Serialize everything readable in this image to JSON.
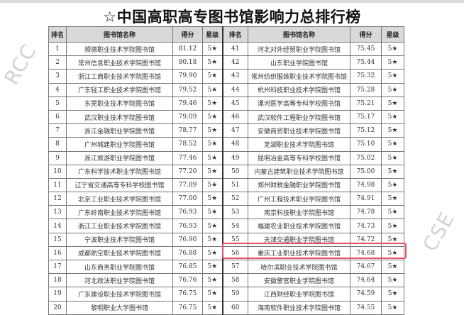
{
  "watermark": {
    "top": "RCC",
    "bottom": "CSE"
  },
  "title": "☆中国高职高专图书馆影响力总排行榜",
  "headers": {
    "rank": "排名",
    "name": "图书馆名称",
    "score": "得分",
    "stars": "星级"
  },
  "highlight_color": "#e8506a",
  "left": [
    {
      "rank": "1",
      "name": "顺德职业技术学院图书馆",
      "score": "81.12",
      "stars": "5★"
    },
    {
      "rank": "2",
      "name": "常州信息职业技术学院图书馆",
      "score": "80.18",
      "stars": "5★"
    },
    {
      "rank": "3",
      "name": "浙江工商职业技术学院图书馆",
      "score": "79.90",
      "stars": "5★"
    },
    {
      "rank": "4",
      "name": "广东轻工职业技术学院图书馆",
      "score": "79.52",
      "stars": "5★"
    },
    {
      "rank": "5",
      "name": "东莞职业技术学院图书馆",
      "score": "79.46",
      "stars": "5★"
    },
    {
      "rank": "6",
      "name": "武汉职业技术学院图书馆",
      "score": "79.09",
      "stars": "5★"
    },
    {
      "rank": "7",
      "name": "浙江金融职业学院图书馆",
      "score": "78.77",
      "stars": "5★"
    },
    {
      "rank": "8",
      "name": "广州城建职业学院图书馆",
      "score": "78.52",
      "stars": "5★"
    },
    {
      "rank": "9",
      "name": "浙江旅游职业学院图书馆",
      "score": "77.46",
      "stars": "5★"
    },
    {
      "rank": "10",
      "name": "广东科学技术职业学院图书馆",
      "score": "77.20",
      "stars": "5★"
    },
    {
      "rank": "11",
      "name": "辽宁省交通高等专科学校图书馆",
      "score": "77.09",
      "stars": "5★"
    },
    {
      "rank": "12",
      "name": "北京工业职业技术学院图书馆",
      "score": "77.00",
      "stars": "5★"
    },
    {
      "rank": "13",
      "name": "广东岭南职业技术学院图书馆",
      "score": "76.93",
      "stars": "5★"
    },
    {
      "rank": "14",
      "name": "浙江工业职业技术学院图书馆",
      "score": "76.93",
      "stars": "5★"
    },
    {
      "rank": "15",
      "name": "宁波职业技术学院图书馆",
      "score": "76.90",
      "stars": "5★"
    },
    {
      "rank": "16",
      "name": "成都航空职业技术学院图书馆",
      "score": "76.88",
      "stars": "5★"
    },
    {
      "rank": "17",
      "name": "山东商务职业学院图书馆",
      "score": "76.85",
      "stars": "5★"
    },
    {
      "rank": "18",
      "name": "河北政法职业学院图书馆",
      "score": "76.76",
      "stars": "5★"
    },
    {
      "rank": "19",
      "name": "广东建设职业技术学院图书馆",
      "score": "76.75",
      "stars": "5★"
    },
    {
      "rank": "20",
      "name": "黎明职业大学图书馆",
      "score": "76.75",
      "stars": "5★"
    }
  ],
  "right": [
    {
      "rank": "41",
      "name": "河北对外经贸职业学院图书馆",
      "score": "75.45",
      "stars": "5★"
    },
    {
      "rank": "42",
      "name": "山东职业学院图书馆",
      "score": "75.44",
      "stars": "5★"
    },
    {
      "rank": "43",
      "name": "常州纺织服装职业技术学院图书馆",
      "score": "75.32",
      "stars": "5★"
    },
    {
      "rank": "44",
      "name": "杭州科技职业技术学院图书馆",
      "score": "75.28",
      "stars": "5★"
    },
    {
      "rank": "45",
      "name": "漯河医学高等专科学校图书馆",
      "score": "75.21",
      "stars": "5★"
    },
    {
      "rank": "46",
      "name": "武汉软件工程职业学院图书馆",
      "score": "75.17",
      "stars": "5★"
    },
    {
      "rank": "47",
      "name": "安徽商贸职业技术学院图书馆",
      "score": "75.12",
      "stars": "5★"
    },
    {
      "rank": "48",
      "name": "芜湖职业技术学院图书馆",
      "score": "75.10",
      "stars": "5★"
    },
    {
      "rank": "49",
      "name": "昆明冶金高等专科学校图书馆",
      "score": "75.02",
      "stars": "5★"
    },
    {
      "rank": "50",
      "name": "内蒙古建筑职业技术学院图书馆",
      "score": "75.00",
      "stars": "5★"
    },
    {
      "rank": "51",
      "name": "郑州财税金融职业学院图书馆",
      "score": "74.98",
      "stars": "5★"
    },
    {
      "rank": "52",
      "name": "广州工程技术职业学院图书馆",
      "score": "74.91",
      "stars": "5★"
    },
    {
      "rank": "53",
      "name": "南京科技职业学院图书馆",
      "score": "74.78",
      "stars": "5★"
    },
    {
      "rank": "54",
      "name": "福建农业职业技术学院图书馆",
      "score": "74.73",
      "stars": "5★"
    },
    {
      "rank": "55",
      "name": "天津交通职业学院图书馆",
      "score": "74.72",
      "stars": "5★"
    },
    {
      "rank": "56",
      "name": "重庆工业职业技术学院图书馆",
      "score": "74.68",
      "stars": "5★",
      "highlighted": true
    },
    {
      "rank": "57",
      "name": "哈尔滨职业技术学院图书馆",
      "score": "74.67",
      "stars": "5★"
    },
    {
      "rank": "58",
      "name": "安徽警官职业学院图书馆",
      "score": "74.64",
      "stars": "5★"
    },
    {
      "rank": "59",
      "name": "江西财经职业学院图书馆",
      "score": "74.59",
      "stars": "5★"
    },
    {
      "rank": "60",
      "name": "海南软件职业技术学院图书馆",
      "score": "74.55",
      "stars": "5★"
    }
  ]
}
